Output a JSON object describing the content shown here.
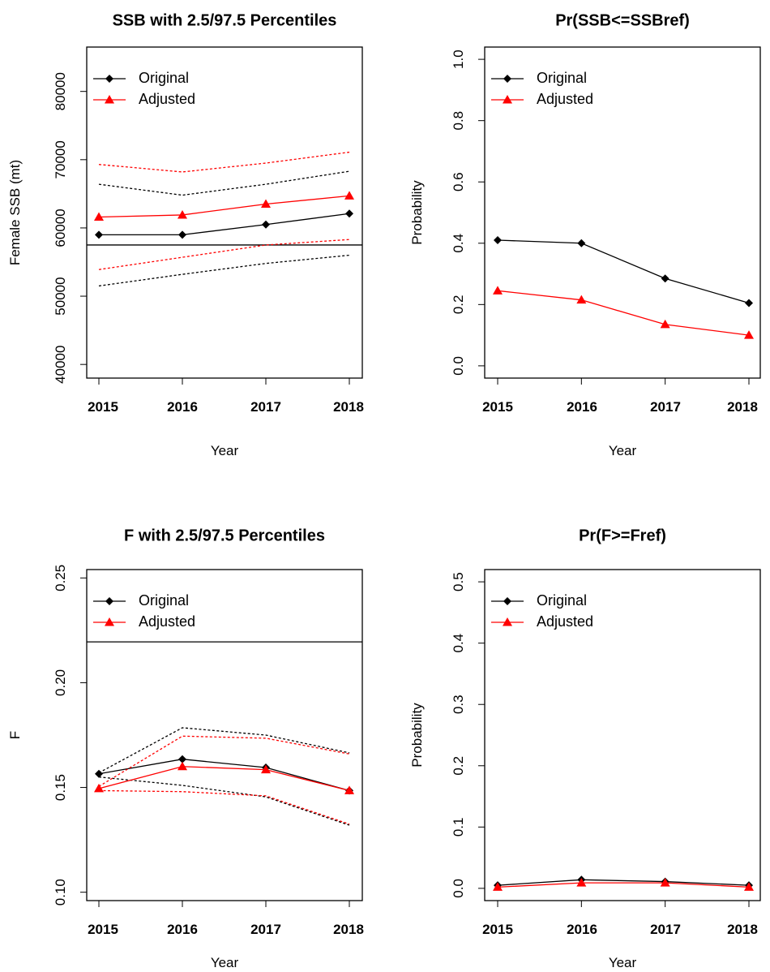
{
  "colors": {
    "original": "#000000",
    "adjusted": "#ff0000"
  },
  "legend": {
    "placement": "top-left",
    "entries": [
      "Original",
      "Adjusted"
    ]
  },
  "chart_data": [
    {
      "type": "line",
      "title": "SSB with 2.5/97.5 Percentiles",
      "xlabel": "Year",
      "ylabel": "Female SSB (mt)",
      "x": [
        2015,
        2016,
        2017,
        2018
      ],
      "xticks": [
        "2015",
        "2016",
        "2017",
        "2018"
      ],
      "ylim": [
        38000,
        86500
      ],
      "yticks": [
        "40000",
        "50000",
        "60000",
        "70000",
        "80000"
      ],
      "reference_line": 57500,
      "series": [
        {
          "name": "Original",
          "color": "#000000",
          "marker": "diamond",
          "values": [
            59000,
            59000,
            60500,
            62100
          ],
          "lower": [
            51500,
            53200,
            54800,
            56000
          ],
          "upper": [
            66400,
            64800,
            66400,
            68300
          ]
        },
        {
          "name": "Adjusted",
          "color": "#ff0000",
          "marker": "triangle",
          "values": [
            61600,
            61900,
            63500,
            64700
          ],
          "lower": [
            53900,
            55700,
            57500,
            58300
          ],
          "upper": [
            69300,
            68200,
            69500,
            71100
          ]
        }
      ]
    },
    {
      "type": "line",
      "title": "Pr(SSB<=SSBref)",
      "xlabel": "Year",
      "ylabel": "Probability",
      "x": [
        2015,
        2016,
        2017,
        2018
      ],
      "xticks": [
        "2015",
        "2016",
        "2017",
        "2018"
      ],
      "ylim": [
        -0.04,
        1.04
      ],
      "yticks": [
        "0.0",
        "0.2",
        "0.4",
        "0.6",
        "0.8",
        "1.0"
      ],
      "series": [
        {
          "name": "Original",
          "color": "#000000",
          "marker": "diamond",
          "values": [
            0.41,
            0.4,
            0.285,
            0.205
          ]
        },
        {
          "name": "Adjusted",
          "color": "#ff0000",
          "marker": "triangle",
          "values": [
            0.245,
            0.215,
            0.135,
            0.1
          ]
        }
      ]
    },
    {
      "type": "line",
      "title": "F with 2.5/97.5 Percentiles",
      "xlabel": "Year",
      "ylabel": "F",
      "x": [
        2015,
        2016,
        2017,
        2018
      ],
      "xticks": [
        "2015",
        "2016",
        "2017",
        "2018"
      ],
      "ylim": [
        0.096,
        0.254
      ],
      "yticks": [
        "0.10",
        "0.15",
        "0.20",
        "0.25"
      ],
      "reference_line": 0.2195,
      "series": [
        {
          "name": "Original",
          "color": "#000000",
          "marker": "diamond",
          "values": [
            0.1565,
            0.1635,
            0.1595,
            0.1485
          ],
          "lower": [
            0.155,
            0.151,
            0.1455,
            0.132
          ],
          "upper": [
            0.157,
            0.1785,
            0.175,
            0.1665
          ]
        },
        {
          "name": "Adjusted",
          "color": "#ff0000",
          "marker": "triangle",
          "values": [
            0.1495,
            0.16,
            0.1585,
            0.1485
          ],
          "lower": [
            0.1485,
            0.148,
            0.146,
            0.1325
          ],
          "upper": [
            0.1505,
            0.1745,
            0.1735,
            0.166
          ]
        }
      ]
    },
    {
      "type": "line",
      "title": "Pr(F>=Fref)",
      "xlabel": "Year",
      "ylabel": "Probability",
      "x": [
        2015,
        2016,
        2017,
        2018
      ],
      "xticks": [
        "2015",
        "2016",
        "2017",
        "2018"
      ],
      "ylim": [
        -0.02,
        0.52
      ],
      "yticks": [
        "0.0",
        "0.1",
        "0.2",
        "0.3",
        "0.4",
        "0.5"
      ],
      "series": [
        {
          "name": "Original",
          "color": "#000000",
          "marker": "diamond",
          "values": [
            0.005,
            0.014,
            0.011,
            0.005
          ]
        },
        {
          "name": "Adjusted",
          "color": "#ff0000",
          "marker": "triangle",
          "values": [
            0.002,
            0.009,
            0.009,
            0.002
          ]
        }
      ]
    }
  ]
}
